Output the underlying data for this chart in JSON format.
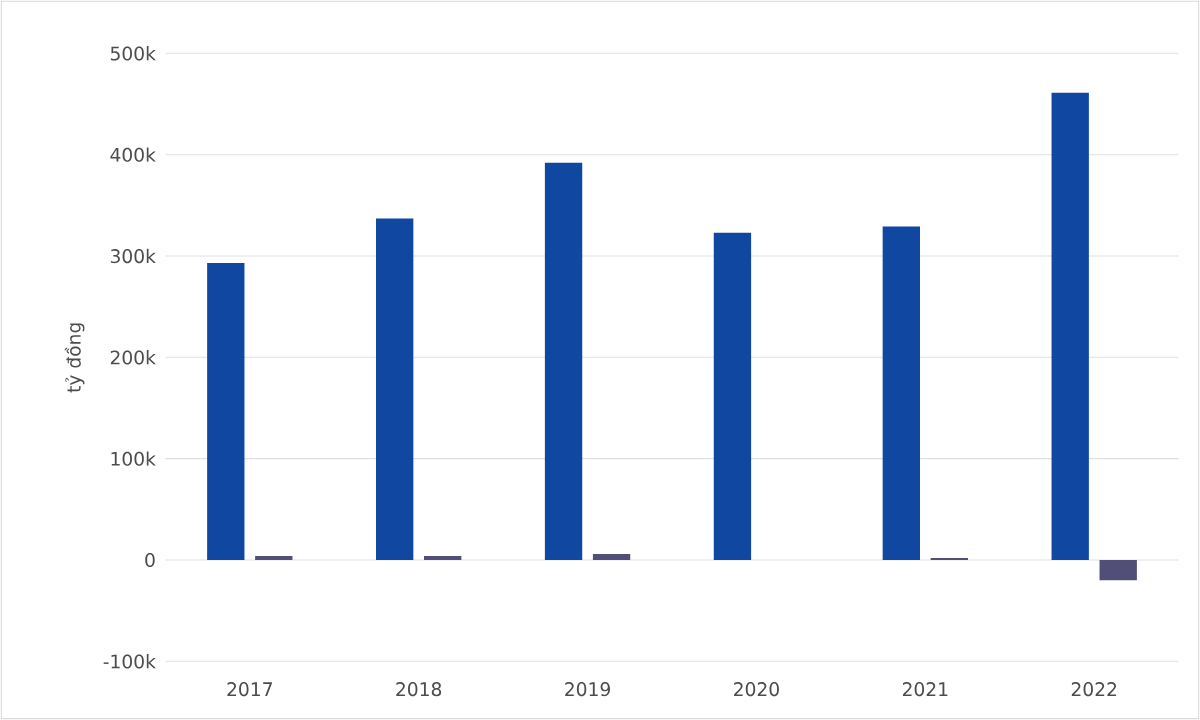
{
  "chart_data": {
    "type": "bar",
    "ylabel": "tỷ đồng",
    "categories": [
      "2017",
      "2018",
      "2019",
      "2020",
      "2021",
      "2022"
    ],
    "series": [
      {
        "color": "#0f47a1",
        "values": [
          293000,
          337000,
          392000,
          323000,
          329000,
          461000
        ]
      },
      {
        "color": "#514e78",
        "values": [
          4000,
          4000,
          6000,
          0,
          2000,
          -20000
        ]
      }
    ],
    "ylim": [
      -100000,
      500000
    ],
    "yticks": [
      {
        "value": -100000,
        "label": "-100k"
      },
      {
        "value": 0,
        "label": "0"
      },
      {
        "value": 100000,
        "label": "100k"
      },
      {
        "value": 200000,
        "label": "200k"
      },
      {
        "value": 300000,
        "label": "300k"
      },
      {
        "value": 400000,
        "label": "400k"
      },
      {
        "value": 500000,
        "label": "500k"
      }
    ],
    "grid": "y"
  }
}
